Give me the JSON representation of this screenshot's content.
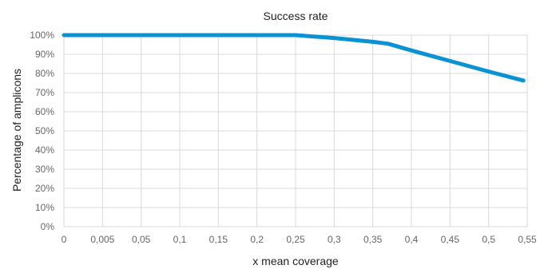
{
  "chart_data": {
    "type": "line",
    "title": "Success rate",
    "xlabel": "x mean coverage",
    "ylabel": "Percentage of amplicons",
    "categories": [
      "0",
      "0,005",
      "0,05",
      "0,1",
      "0,15",
      "0,2",
      "0,25",
      "0,3",
      "0,35",
      "0,4",
      "0,45",
      "0,5",
      "0,55"
    ],
    "x": [
      0,
      0.005,
      0.05,
      0.1,
      0.15,
      0.2,
      0.25,
      0.3,
      0.35,
      0.37,
      0.4,
      0.45,
      0.5,
      0.545
    ],
    "series": [
      {
        "values": [
          100,
          100,
          100,
          100,
          100,
          100,
          100,
          98.5,
          96.5,
          95.5,
          92,
          86.5,
          81,
          76.3
        ]
      }
    ],
    "yticks": [
      "0%",
      "10%",
      "20%",
      "30%",
      "40%",
      "50%",
      "60%",
      "70%",
      "80%",
      "90%",
      "100%"
    ],
    "ylim": [
      0,
      100
    ],
    "grid": true,
    "legend": "none",
    "color": "#0a93d4"
  }
}
